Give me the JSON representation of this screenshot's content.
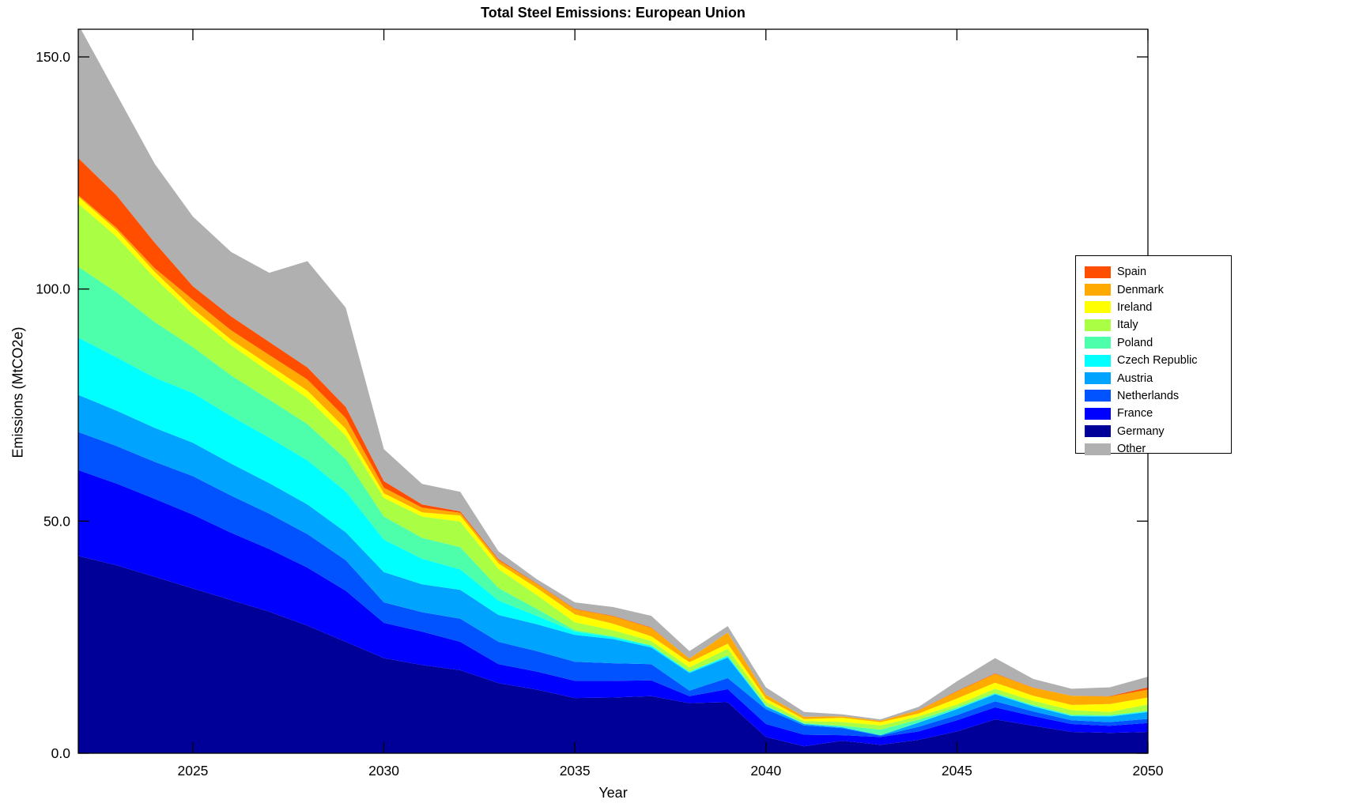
{
  "figure": {
    "title": "Total Steel Emissions: European Union",
    "xlabel": "Year",
    "ylabel": "Emissions (MtCO2e)"
  },
  "chart_data": {
    "type": "area",
    "stacked": true,
    "title": "Total Steel Emissions: European Union",
    "xlabel": "Year",
    "ylabel": "Emissions (MtCO2e)",
    "x_range": [
      2022,
      2050
    ],
    "y_range": [
      0,
      156
    ],
    "xticks": [
      2025,
      2030,
      2035,
      2040,
      2045,
      2050
    ],
    "yticks": [
      0,
      50,
      100,
      150
    ],
    "ytick_labels": [
      "0.0",
      "50.0",
      "100.0",
      "150.0"
    ],
    "grid": false,
    "legend_position": "outside-right",
    "legend_order_top_to_bottom": [
      "Spain",
      "Denmark",
      "Ireland",
      "Italy",
      "Poland",
      "Czech Republic",
      "Austria",
      "Netherlands",
      "France",
      "Germany",
      "Other"
    ],
    "x": [
      2022,
      2023,
      2024,
      2025,
      2026,
      2027,
      2028,
      2029,
      2030,
      2031,
      2032,
      2033,
      2034,
      2035,
      2036,
      2037,
      2038,
      2039,
      2040,
      2041,
      2042,
      2043,
      2044,
      2045,
      2046,
      2047,
      2048,
      2049,
      2050
    ],
    "series": [
      {
        "name": "Germany",
        "color": "#000099",
        "values": [
          42.5,
          40.5,
          38.0,
          35.5,
          33.0,
          30.5,
          27.5,
          24.0,
          20.5,
          19.0,
          17.9,
          15.1,
          13.7,
          11.9,
          12.0,
          12.3,
          10.8,
          11.0,
          3.5,
          1.5,
          2.7,
          1.8,
          2.9,
          4.7,
          7.3,
          5.9,
          4.6,
          4.4,
          4.6
        ]
      },
      {
        "name": "France",
        "color": "#0000FE",
        "values": [
          18.5,
          17.6,
          16.8,
          15.9,
          14.5,
          13.5,
          12.5,
          11.0,
          7.6,
          7.2,
          6.1,
          4.1,
          3.9,
          3.7,
          3.6,
          3.4,
          1.5,
          2.8,
          2.8,
          2.5,
          1.2,
          1.7,
          1.8,
          2.4,
          2.6,
          2.1,
          1.7,
          1.5,
          1.9
        ]
      },
      {
        "name": "Netherlands",
        "color": "#0053FF",
        "values": [
          8.2,
          8.1,
          8.0,
          8.3,
          8.0,
          7.6,
          7.2,
          6.6,
          4.4,
          4.2,
          5.0,
          4.8,
          4.4,
          4.1,
          3.8,
          3.5,
          1.2,
          2.4,
          3.2,
          2.0,
          1.5,
          0.3,
          1.0,
          1.1,
          1.3,
          1.0,
          0.8,
          0.8,
          0.9
        ]
      },
      {
        "name": "Austria",
        "color": "#00A4FF",
        "values": [
          8.0,
          7.6,
          7.3,
          7.2,
          6.9,
          6.6,
          6.4,
          6.0,
          6.5,
          6.0,
          6.2,
          5.8,
          5.8,
          5.8,
          5.2,
          3.6,
          3.8,
          4.4,
          0.6,
          0.3,
          0.2,
          0.1,
          0.9,
          1.3,
          1.5,
          1.1,
          0.9,
          1.2,
          1.5
        ]
      },
      {
        "name": "Czech Republic",
        "color": "#00FFFF",
        "values": [
          12.3,
          11.5,
          10.8,
          10.7,
          10.2,
          9.8,
          9.5,
          8.8,
          7.0,
          5.5,
          4.4,
          3.1,
          1.8,
          0.7,
          0.4,
          0.3,
          0.2,
          0.3,
          0.1,
          0.05,
          0.05,
          0.0,
          0.05,
          0.1,
          0.1,
          0.1,
          0.1,
          0.1,
          0.1
        ]
      },
      {
        "name": "Poland",
        "color": "#4DFFAA",
        "values": [
          15.3,
          14.0,
          12.0,
          9.9,
          8.8,
          8.2,
          7.8,
          7.0,
          5.0,
          4.5,
          4.8,
          2.7,
          1.5,
          0.3,
          0.2,
          0.2,
          0.1,
          0.2,
          0.1,
          0.1,
          0.3,
          1.2,
          0.6,
          0.3,
          0.2,
          0.2,
          0.2,
          0.2,
          0.2
        ]
      },
      {
        "name": "Italy",
        "color": "#AAFF44",
        "values": [
          13.6,
          12.0,
          9.5,
          7.1,
          6.5,
          6.0,
          5.6,
          5.0,
          4.0,
          4.6,
          5.5,
          4.1,
          3.0,
          1.7,
          1.3,
          0.9,
          0.9,
          1.4,
          0.8,
          0.5,
          0.8,
          0.9,
          0.7,
          0.6,
          0.9,
          0.9,
          1.0,
          0.7,
          1.3
        ]
      },
      {
        "name": "Ireland",
        "color": "#FFFF00",
        "values": [
          1.5,
          1.4,
          1.3,
          1.2,
          1.2,
          1.4,
          1.6,
          1.5,
          1.0,
          0.9,
          1.3,
          1.2,
          1.5,
          1.7,
          1.4,
          1.0,
          1.1,
          1.1,
          0.7,
          0.4,
          0.9,
          0.7,
          0.6,
          1.3,
          1.3,
          1.1,
          1.1,
          1.7,
          1.5
        ]
      },
      {
        "name": "Denmark",
        "color": "#FFAA00",
        "values": [
          0.3,
          0.5,
          0.8,
          1.9,
          2.0,
          2.2,
          2.4,
          2.3,
          1.2,
          1.0,
          0.6,
          0.7,
          0.9,
          1.1,
          1.6,
          1.8,
          0.8,
          2.4,
          0.8,
          0.5,
          0.3,
          0.3,
          0.7,
          1.5,
          1.9,
          1.7,
          2.0,
          1.6,
          1.7
        ]
      },
      {
        "name": "Spain",
        "color": "#FF4E00",
        "values": [
          8.0,
          7.0,
          5.5,
          2.9,
          3.0,
          2.8,
          2.6,
          2.4,
          1.4,
          0.7,
          0.3,
          0.2,
          0.1,
          0.1,
          0.1,
          0.1,
          0.0,
          0.0,
          0.0,
          0.0,
          0.0,
          0.0,
          0.05,
          0.1,
          0.1,
          0.05,
          0.0,
          0.1,
          0.5
        ]
      },
      {
        "name": "Other",
        "color": "#B0B0B0",
        "values": [
          28.8,
          21.8,
          17.0,
          15.0,
          13.9,
          14.9,
          22.9,
          21.4,
          6.9,
          4.4,
          4.2,
          1.7,
          0.9,
          1.4,
          1.9,
          2.5,
          1.6,
          1.4,
          1.6,
          1.05,
          0.45,
          0.3,
          0.7,
          2.1,
          3.3,
          1.85,
          1.5,
          1.9,
          2.3
        ]
      }
    ]
  }
}
